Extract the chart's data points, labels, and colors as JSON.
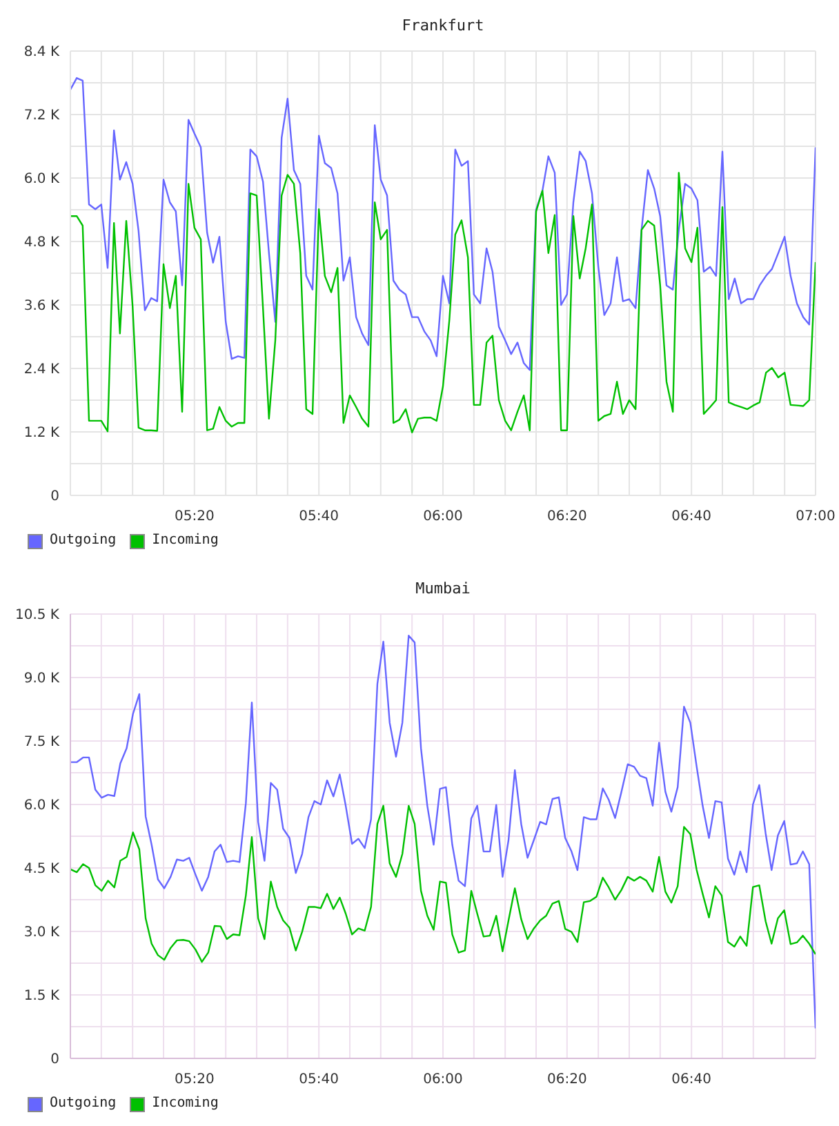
{
  "chart_data": [
    {
      "type": "line",
      "title": "Frankfurt",
      "x": [
        5,
        5.017,
        5.033,
        5.05,
        5.067,
        5.083,
        5.1,
        5.117,
        5.133,
        5.15,
        5.167,
        5.183,
        5.2,
        5.217,
        5.233,
        5.25,
        5.267,
        5.283,
        5.3,
        5.317,
        5.333,
        5.35,
        5.367,
        5.383,
        5.4,
        5.417,
        5.433,
        5.45,
        5.467,
        5.483,
        5.5,
        5.517,
        5.533,
        5.55,
        5.567,
        5.583,
        5.6,
        5.617,
        5.633,
        5.65,
        5.667,
        5.683,
        5.7,
        5.717,
        5.733,
        5.75,
        5.767,
        5.783,
        5.8,
        5.817,
        5.833,
        5.85,
        5.867,
        5.883,
        5.9,
        5.917,
        5.933,
        5.95,
        5.967,
        5.983,
        6,
        6.017,
        6.033,
        6.05,
        6.067,
        6.083,
        6.1,
        6.117,
        6.133,
        6.15,
        6.167,
        6.183,
        6.2,
        6.217,
        6.233,
        6.25,
        6.267,
        6.283,
        6.3,
        6.317,
        6.333,
        6.35,
        6.367,
        6.383,
        6.4,
        6.417,
        6.433,
        6.45,
        6.467,
        6.483,
        6.5,
        6.517,
        6.533,
        6.55,
        6.567,
        6.583,
        6.6,
        6.617,
        6.633,
        6.65,
        6.667,
        6.683,
        6.7,
        6.717,
        6.733,
        6.75,
        6.767,
        6.783,
        6.8,
        6.817,
        6.833,
        6.85,
        6.867,
        6.883,
        6.9,
        6.917,
        6.933,
        6.95,
        6.967,
        6.983,
        7
      ],
      "series": [
        {
          "name": "Outgoing",
          "color": "#6666ff",
          "values": [
            7670,
            7890,
            7840,
            5500,
            5410,
            5500,
            4300,
            6900,
            5970,
            6300,
            5890,
            5000,
            3500,
            3730,
            3670,
            5970,
            5540,
            5370,
            3970,
            7100,
            6840,
            6580,
            4970,
            4400,
            4890,
            3280,
            2580,
            2630,
            2600,
            6540,
            6410,
            5930,
            4580,
            3280,
            6760,
            7500,
            6150,
            5890,
            4150,
            3890,
            6800,
            6280,
            6190,
            5710,
            4060,
            4500,
            3370,
            3060,
            2840,
            7000,
            5970,
            5670,
            4060,
            3890,
            3800,
            3370,
            3370,
            3100,
            2930,
            2630,
            4150,
            3630,
            6540,
            6230,
            6320,
            3800,
            3630,
            4670,
            4230,
            3190,
            2930,
            2670,
            2890,
            2500,
            2370,
            5400,
            5760,
            6410,
            6100,
            3600,
            3800,
            5540,
            6500,
            6320,
            5710,
            4320,
            3410,
            3630,
            4500,
            3670,
            3710,
            3540,
            5020,
            6150,
            5800,
            5280,
            3970,
            3890,
            5020,
            5890,
            5800,
            5580,
            4230,
            4320,
            4150,
            6500,
            3710,
            4100,
            3630,
            3710,
            3710,
            3970,
            4150,
            4280,
            4580,
            4890,
            4150,
            3630,
            3370,
            3230,
            6580
          ]
        },
        {
          "name": "Incoming",
          "color": "#00c000",
          "values": [
            5280,
            5280,
            5100,
            1410,
            1410,
            1410,
            1210,
            5150,
            3060,
            5190,
            3580,
            1280,
            1230,
            1230,
            1220,
            4370,
            3540,
            4150,
            1580,
            5890,
            5060,
            4840,
            1230,
            1260,
            1670,
            1410,
            1300,
            1370,
            1370,
            5710,
            5670,
            3540,
            1450,
            2930,
            5670,
            6060,
            5890,
            4580,
            1630,
            1540,
            5410,
            4150,
            3840,
            4300,
            1370,
            1890,
            1670,
            1450,
            1300,
            5540,
            4840,
            5020,
            1370,
            1430,
            1630,
            1190,
            1450,
            1470,
            1470,
            1410,
            2060,
            3300,
            4930,
            5200,
            4500,
            1710,
            1710,
            2890,
            3020,
            1800,
            1410,
            1230,
            1580,
            1890,
            1230,
            5370,
            5760,
            4580,
            5300,
            1230,
            1230,
            5280,
            4100,
            4670,
            5500,
            1410,
            1500,
            1540,
            2150,
            1540,
            1800,
            1630,
            5020,
            5190,
            5100,
            3970,
            2150,
            1580,
            6100,
            4670,
            4410,
            5060,
            1540,
            1670,
            1800,
            5450,
            1760,
            1710,
            1670,
            1630,
            1700,
            1760,
            2320,
            2410,
            2230,
            2320,
            1710,
            1700,
            1690,
            1800,
            4410
          ]
        }
      ],
      "xlim": [
        5,
        7
      ],
      "xticks": [
        {
          "value": 5.083,
          "label": null
        },
        {
          "value": 5.167,
          "label": null
        },
        {
          "value": 5.25,
          "label": null
        },
        {
          "value": 5.333,
          "label": "05:20"
        },
        {
          "value": 5.417,
          "label": null
        },
        {
          "value": 5.5,
          "label": null
        },
        {
          "value": 5.583,
          "label": null
        },
        {
          "value": 5.667,
          "label": "05:40"
        },
        {
          "value": 5.75,
          "label": null
        },
        {
          "value": 5.833,
          "label": null
        },
        {
          "value": 5.917,
          "label": null
        },
        {
          "value": 6,
          "label": "06:00"
        },
        {
          "value": 6.083,
          "label": null
        },
        {
          "value": 6.167,
          "label": null
        },
        {
          "value": 6.25,
          "label": null
        },
        {
          "value": 6.333,
          "label": "06:20"
        },
        {
          "value": 6.417,
          "label": null
        },
        {
          "value": 6.5,
          "label": null
        },
        {
          "value": 6.583,
          "label": null
        },
        {
          "value": 6.667,
          "label": "06:40"
        },
        {
          "value": 6.75,
          "label": null
        },
        {
          "value": 6.833,
          "label": null
        },
        {
          "value": 6.917,
          "label": null
        },
        {
          "value": 7,
          "label": "07:00"
        }
      ],
      "ylim": [
        0,
        8400
      ],
      "yticks": [
        0,
        {
          "value": 600,
          "label": null
        },
        {
          "value": 1200,
          "label": "1.2 K"
        },
        {
          "value": 1800,
          "label": null
        },
        {
          "value": 2400,
          "label": "2.4 K"
        },
        {
          "value": 3000,
          "label": null
        },
        {
          "value": 3600,
          "label": "3.6 K"
        },
        {
          "value": 4200,
          "label": null
        },
        {
          "value": 4800,
          "label": "4.8 K"
        },
        {
          "value": 5400,
          "label": null
        },
        {
          "value": 6000,
          "label": "6.0 K"
        },
        {
          "value": 6600,
          "label": null
        },
        {
          "value": 7200,
          "label": "7.2 K"
        },
        {
          "value": 7800,
          "label": null
        },
        {
          "value": 8400,
          "label": "8.4 K"
        }
      ],
      "grid": true,
      "legend": "bottom left"
    },
    {
      "type": "line",
      "title": "Mumbai",
      "x": [
        5,
        5.017,
        5.034,
        5.05,
        5.067,
        5.084,
        5.101,
        5.118,
        5.134,
        5.151,
        5.168,
        5.185,
        5.202,
        5.218,
        5.235,
        5.252,
        5.269,
        5.286,
        5.303,
        5.319,
        5.336,
        5.353,
        5.37,
        5.387,
        5.403,
        5.42,
        5.437,
        5.454,
        5.471,
        5.487,
        5.504,
        5.521,
        5.538,
        5.555,
        5.571,
        5.588,
        5.605,
        5.622,
        5.639,
        5.655,
        5.672,
        5.689,
        5.706,
        5.723,
        5.739,
        5.756,
        5.773,
        5.79,
        5.807,
        5.824,
        5.84,
        5.857,
        5.874,
        5.891,
        5.908,
        5.924,
        5.941,
        5.958,
        5.975,
        5.992,
        6.008,
        6.025,
        6.042,
        6.059,
        6.076,
        6.092,
        6.109,
        6.126,
        6.143,
        6.16,
        6.176,
        6.193,
        6.21,
        6.227,
        6.244,
        6.261,
        6.277,
        6.294,
        6.311,
        6.328,
        6.345,
        6.361,
        6.378,
        6.395,
        6.412,
        6.429,
        6.445,
        6.462,
        6.479,
        6.496,
        6.513,
        6.529,
        6.546,
        6.563,
        6.58,
        6.597,
        6.613,
        6.63,
        6.647,
        6.664,
        6.681,
        6.697,
        6.714,
        6.731,
        6.748,
        6.765,
        6.782,
        6.798,
        6.815,
        6.832,
        6.849,
        6.866,
        6.882,
        6.899,
        6.916,
        6.933,
        6.95,
        6.966,
        6.983,
        7
      ],
      "series": [
        {
          "name": "Outgoing",
          "color": "#6666ff",
          "values": [
            7000,
            7000,
            7110,
            7110,
            6350,
            6160,
            6230,
            6200,
            6970,
            7330,
            8140,
            8610,
            5720,
            5050,
            4230,
            4020,
            4290,
            4700,
            4670,
            4740,
            4340,
            3960,
            4290,
            4890,
            5050,
            4640,
            4670,
            4640,
            6030,
            8410,
            5590,
            4670,
            6510,
            6350,
            5430,
            5210,
            4380,
            4830,
            5700,
            6080,
            6000,
            6570,
            6190,
            6710,
            5970,
            5070,
            5190,
            4970,
            5650,
            8850,
            9850,
            7930,
            7130,
            7930,
            9990,
            9830,
            7330,
            5970,
            5050,
            6370,
            6410,
            5050,
            4200,
            4070,
            5670,
            5970,
            4890,
            4890,
            5990,
            4290,
            5160,
            6810,
            5540,
            4740,
            5160,
            5590,
            5530,
            6130,
            6170,
            5210,
            4890,
            4450,
            5700,
            5650,
            5650,
            6380,
            6110,
            5680,
            6300,
            6950,
            6890,
            6680,
            6620,
            5970,
            7460,
            6300,
            5830,
            6410,
            8310,
            7930,
            6890,
            5970,
            5210,
            6080,
            6050,
            4720,
            4340,
            4890,
            4400,
            6000,
            6460,
            5320,
            4450,
            5270,
            5610,
            4580,
            4610,
            4890,
            4590,
            710
          ]
        },
        {
          "name": "Incoming",
          "color": "#00c000",
          "values": [
            4470,
            4400,
            4590,
            4500,
            4090,
            3960,
            4200,
            4040,
            4670,
            4760,
            5340,
            4940,
            3310,
            2710,
            2440,
            2330,
            2610,
            2790,
            2800,
            2770,
            2570,
            2280,
            2500,
            3130,
            3120,
            2820,
            2930,
            2910,
            3850,
            5230,
            3310,
            2820,
            4180,
            3580,
            3260,
            3090,
            2550,
            2990,
            3580,
            3580,
            3550,
            3890,
            3530,
            3800,
            3420,
            2930,
            3070,
            3020,
            3580,
            5540,
            5970,
            4610,
            4290,
            4830,
            5970,
            5540,
            3960,
            3370,
            3040,
            4180,
            4150,
            2930,
            2500,
            2550,
            3960,
            3420,
            2880,
            2900,
            3370,
            2530,
            3260,
            4020,
            3290,
            2820,
            3070,
            3260,
            3370,
            3660,
            3720,
            3060,
            2990,
            2750,
            3690,
            3720,
            3820,
            4270,
            4040,
            3750,
            3980,
            4290,
            4200,
            4290,
            4200,
            3940,
            4760,
            3940,
            3680,
            4070,
            5470,
            5300,
            4450,
            3890,
            3330,
            4070,
            3850,
            2750,
            2640,
            2880,
            2660,
            4050,
            4090,
            3240,
            2710,
            3310,
            3500,
            2700,
            2740,
            2900,
            2710,
            2460
          ]
        }
      ],
      "xlim": [
        5,
        7
      ],
      "xticks": [
        {
          "value": 5.083,
          "label": null
        },
        {
          "value": 5.167,
          "label": null
        },
        {
          "value": 5.25,
          "label": null
        },
        {
          "value": 5.333,
          "label": "05:20"
        },
        {
          "value": 5.417,
          "label": null
        },
        {
          "value": 5.5,
          "label": null
        },
        {
          "value": 5.583,
          "label": null
        },
        {
          "value": 5.667,
          "label": "05:40"
        },
        {
          "value": 5.75,
          "label": null
        },
        {
          "value": 5.833,
          "label": null
        },
        {
          "value": 5.917,
          "label": null
        },
        {
          "value": 6,
          "label": "06:00"
        },
        {
          "value": 6.083,
          "label": null
        },
        {
          "value": 6.167,
          "label": null
        },
        {
          "value": 6.25,
          "label": null
        },
        {
          "value": 6.333,
          "label": "06:20"
        },
        {
          "value": 6.417,
          "label": null
        },
        {
          "value": 6.5,
          "label": null
        },
        {
          "value": 6.583,
          "label": null
        },
        {
          "value": 6.667,
          "label": "06:40"
        },
        {
          "value": 6.75,
          "label": null
        },
        {
          "value": 6.833,
          "label": null
        },
        {
          "value": 6.917,
          "label": null
        },
        {
          "value": 7,
          "label": null
        }
      ],
      "ylim": [
        0,
        10500
      ],
      "yticks": [
        0,
        {
          "value": 750,
          "label": null
        },
        {
          "value": 1500,
          "label": "1.5 K"
        },
        {
          "value": 2250,
          "label": null
        },
        {
          "value": 3000,
          "label": "3.0 K"
        },
        {
          "value": 3750,
          "label": null
        },
        {
          "value": 4500,
          "label": "4.5 K"
        },
        {
          "value": 5250,
          "label": null
        },
        {
          "value": 6000,
          "label": "6.0 K"
        },
        {
          "value": 6750,
          "label": null
        },
        {
          "value": 7500,
          "label": "7.5 K"
        },
        {
          "value": 8250,
          "label": null
        },
        {
          "value": 9000,
          "label": "9.0 K"
        },
        {
          "value": 9750,
          "label": null
        },
        {
          "value": 10500,
          "label": "10.5 K"
        }
      ],
      "grid": true,
      "legend": "bottom left"
    }
  ]
}
